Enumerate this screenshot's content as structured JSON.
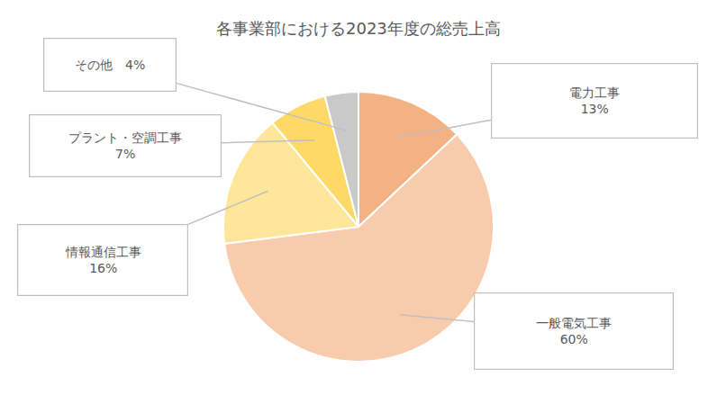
{
  "chart_data": {
    "type": "pie",
    "title": "各事業部における2023年度の総売上高",
    "categories": [
      "電力工事",
      "一般電気工事",
      "情報通信工事",
      "プラント・空調工事",
      "その他"
    ],
    "values": [
      13,
      60,
      16,
      7,
      4
    ],
    "value_labels": [
      "13%",
      "60%",
      "16%",
      "7%",
      "4%"
    ],
    "colors": [
      "#f4b183",
      "#f8cbad",
      "#ffe699",
      "#ffd966",
      "#c9c9c9"
    ],
    "data_labels": true
  }
}
